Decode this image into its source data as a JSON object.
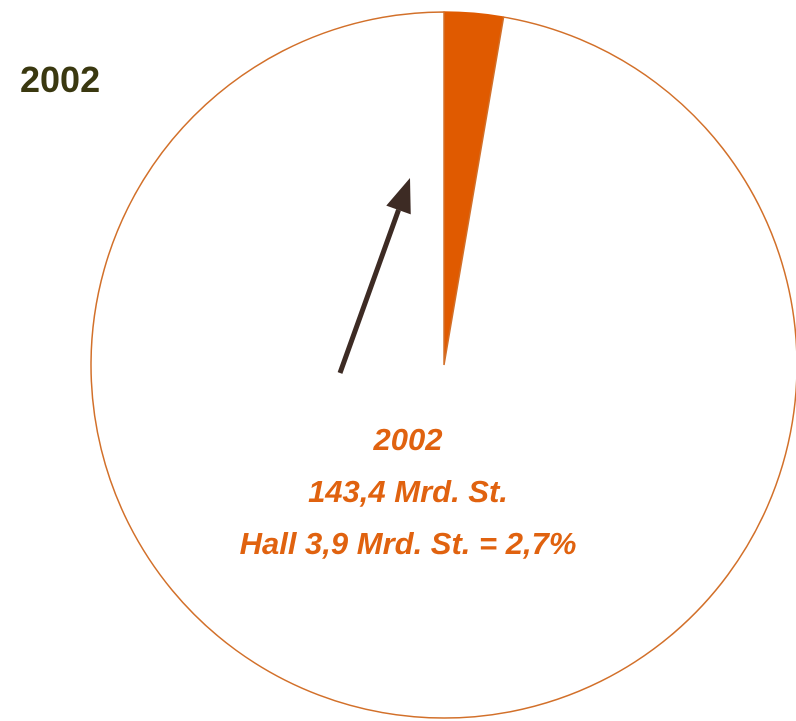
{
  "chart_data": {
    "type": "pie",
    "title": "2002",
    "values": [
      2.7,
      97.3
    ],
    "colors": [
      "#e05a00",
      "#ffffff"
    ],
    "edge_color": "#d2702a",
    "annotation": [
      "2002",
      "143,4 Mrd. St.",
      "Hall 3,9 Mrd. St. = 2,7%"
    ],
    "arrow_color": "#3d2b24"
  }
}
